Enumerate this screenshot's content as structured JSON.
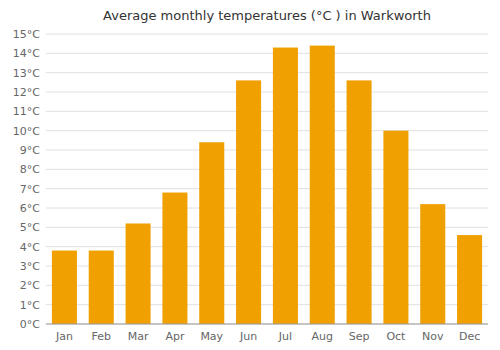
{
  "chart_data": {
    "type": "bar",
    "title": "Average monthly temperatures (°C ) in Warkworth",
    "categories": [
      "Jan",
      "Feb",
      "Mar",
      "Apr",
      "May",
      "Jun",
      "Jul",
      "Aug",
      "Sep",
      "Oct",
      "Nov",
      "Dec"
    ],
    "values": [
      3.8,
      3.8,
      5.2,
      6.8,
      9.4,
      12.6,
      14.3,
      14.4,
      12.6,
      10.0,
      6.2,
      4.6
    ],
    "color": "#F0A000",
    "ylim": [
      0,
      15
    ],
    "yticks": [
      {
        "value": 0,
        "label": "0°C"
      },
      {
        "value": 1,
        "label": "1°C"
      },
      {
        "value": 2,
        "label": "2°C"
      },
      {
        "value": 3,
        "label": "3°C"
      },
      {
        "value": 4,
        "label": "4°C"
      },
      {
        "value": 5,
        "label": "5°C"
      },
      {
        "value": 6,
        "label": "6°C"
      },
      {
        "value": 7,
        "label": "7°C"
      },
      {
        "value": 8,
        "label": "8°C"
      },
      {
        "value": 9,
        "label": "9°C"
      },
      {
        "value": 10,
        "label": "10°C"
      },
      {
        "value": 11,
        "label": "11°C"
      },
      {
        "value": 12,
        "label": "12°C"
      },
      {
        "value": 13,
        "label": "13°C"
      },
      {
        "value": 14,
        "label": "14°C"
      },
      {
        "value": 15,
        "label": "15°C"
      }
    ],
    "grid": true
  }
}
